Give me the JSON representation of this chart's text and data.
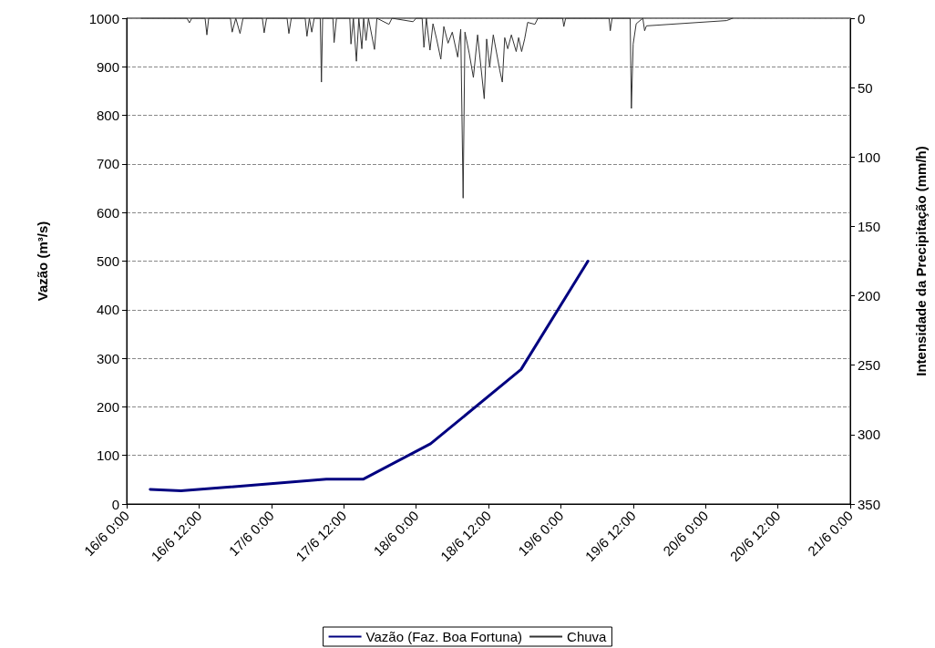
{
  "chart_data": {
    "type": "line",
    "ylabel": "Vazão (m³/s)",
    "y2label": "Intensidade da Precipitação (mm/h)",
    "xlim": [
      "--06-16T00:00",
      "--06-21T00:00"
    ],
    "xticks": [
      {
        "value": "--06-16T00:00",
        "label": "16/6 0:00"
      },
      {
        "value": "--06-16T12:00",
        "label": "16/6 12:00"
      },
      {
        "value": "--06-17T00:00",
        "label": "17/6 0:00"
      },
      {
        "value": "--06-17T12:00",
        "label": "17/6 12:00"
      },
      {
        "value": "--06-18T00:00",
        "label": "18/6 0:00"
      },
      {
        "value": "--06-18T12:00",
        "label": "18/6 12:00"
      },
      {
        "value": "--06-19T00:00",
        "label": "19/6 0:00"
      },
      {
        "value": "--06-19T12:00",
        "label": "19/6 12:00"
      },
      {
        "value": "--06-20T00:00",
        "label": "20/6 0:00"
      },
      {
        "value": "--06-20T12:00",
        "label": "20/6 12:00"
      },
      {
        "value": "--06-21T00:00",
        "label": "21/6 0:00"
      }
    ],
    "ylim": [
      0,
      1000
    ],
    "yticks": [
      0,
      100,
      200,
      300,
      400,
      500,
      600,
      700,
      800,
      900,
      1000
    ],
    "y2lim": [
      350,
      0
    ],
    "y2ticks": [
      0,
      50,
      100,
      150,
      200,
      250,
      300,
      350
    ],
    "grid": "y",
    "legend": "bottom",
    "marker": "none",
    "line_style": "solid",
    "series": [
      {
        "name": "Vazão (Faz. Boa Fortuna)",
        "color": "#000080",
        "axis": "y",
        "x": [
          "--06-16T03:54",
          "--06-16T09:00",
          "--06-17T09:06",
          "--06-17T15:12",
          "--06-18T02:24",
          "--06-18T17:24",
          "--06-19T04:30"
        ],
        "values": [
          30,
          27,
          51,
          51,
          124,
          277,
          500
        ]
      },
      {
        "name": "Chuva",
        "color": "#333333",
        "axis": "y2",
        "x": [
          "--06-16T02:24",
          "--06-16T10:00",
          "--06-16T10:24",
          "--06-16T10:48",
          "--06-16T13:00",
          "--06-16T13:18",
          "--06-16T13:36",
          "--06-16T17:12",
          "--06-16T17:30",
          "--06-16T18:06",
          "--06-16T18:48",
          "--06-16T19:18",
          "--06-16T22:30",
          "--06-16T22:48",
          "--06-16T23:12",
          "--06-17T02:36",
          "--06-17T02:54",
          "--06-17T03:18",
          "--06-17T05:36",
          "--06-17T05:54",
          "--06-17T06:18",
          "--06-17T06:42",
          "--06-17T07:06",
          "--06-17T08:06",
          "--06-17T08:18",
          "--06-17T08:30",
          "--06-17T10:12",
          "--06-17T10:24",
          "--06-17T10:48",
          "--06-17T13:00",
          "--06-17T13:12",
          "--06-17T13:36",
          "--06-17T14:06",
          "--06-17T14:30",
          "--06-17T15:00",
          "--06-17T15:18",
          "--06-17T15:42",
          "--06-17T16:06",
          "--06-17T17:06",
          "--06-17T17:30",
          "--06-17T19:30",
          "--06-17T20:00",
          "--06-17T23:30",
          "--06-18T00:00",
          "--06-18T01:00",
          "--06-18T01:18",
          "--06-18T01:42",
          "--06-18T02:18",
          "--06-18T02:48",
          "--06-18T03:24",
          "--06-18T04:06",
          "--06-18T04:36",
          "--06-18T05:18",
          "--06-18T06:00",
          "--06-18T06:54",
          "--06-18T07:24",
          "--06-18T07:48",
          "--06-18T08:06",
          "--06-18T08:48",
          "--06-18T09:30",
          "--06-18T10:12",
          "--06-18T11:18",
          "--06-18T11:42",
          "--06-18T12:12",
          "--06-18T12:48",
          "--06-18T13:54",
          "--06-18T14:18",
          "--06-18T14:42",
          "--06-18T15:12",
          "--06-18T15:48",
          "--06-18T16:36",
          "--06-18T17:00",
          "--06-18T17:30",
          "--06-18T18:00",
          "--06-18T18:30",
          "--06-18T19:42",
          "--06-18T20:12",
          "--06-19T00:18",
          "--06-19T00:30",
          "--06-19T00:48",
          "--06-19T08:00",
          "--06-19T08:12",
          "--06-19T08:30",
          "--06-19T11:30",
          "--06-19T11:42",
          "--06-19T12:00",
          "--06-19T12:30",
          "--06-19T13:36",
          "--06-19T13:54",
          "--06-19T14:12",
          "--06-20T03:30",
          "--06-20T04:30"
        ],
        "values": [
          0,
          0,
          3.3,
          0,
          0,
          12,
          0,
          0,
          10,
          0,
          11,
          0,
          0,
          10.5,
          0,
          0,
          11,
          0,
          0,
          13,
          0,
          10,
          0,
          0,
          46,
          0,
          0,
          17.5,
          0,
          0,
          18.6,
          0,
          31,
          0,
          22,
          0,
          16,
          0,
          22.5,
          0,
          4.4,
          0,
          2.5,
          0,
          0,
          21,
          0,
          23,
          4,
          15,
          29.5,
          6,
          18,
          10,
          28,
          8,
          129.6,
          10,
          25,
          42.7,
          12,
          58,
          15,
          35,
          12,
          38,
          46,
          14,
          22,
          12,
          24,
          14,
          24,
          15,
          3,
          4.4,
          0,
          0,
          6,
          0,
          0,
          9,
          0,
          0,
          65,
          18.6,
          4,
          0,
          9,
          5.5,
          1.7,
          0
        ]
      }
    ]
  }
}
